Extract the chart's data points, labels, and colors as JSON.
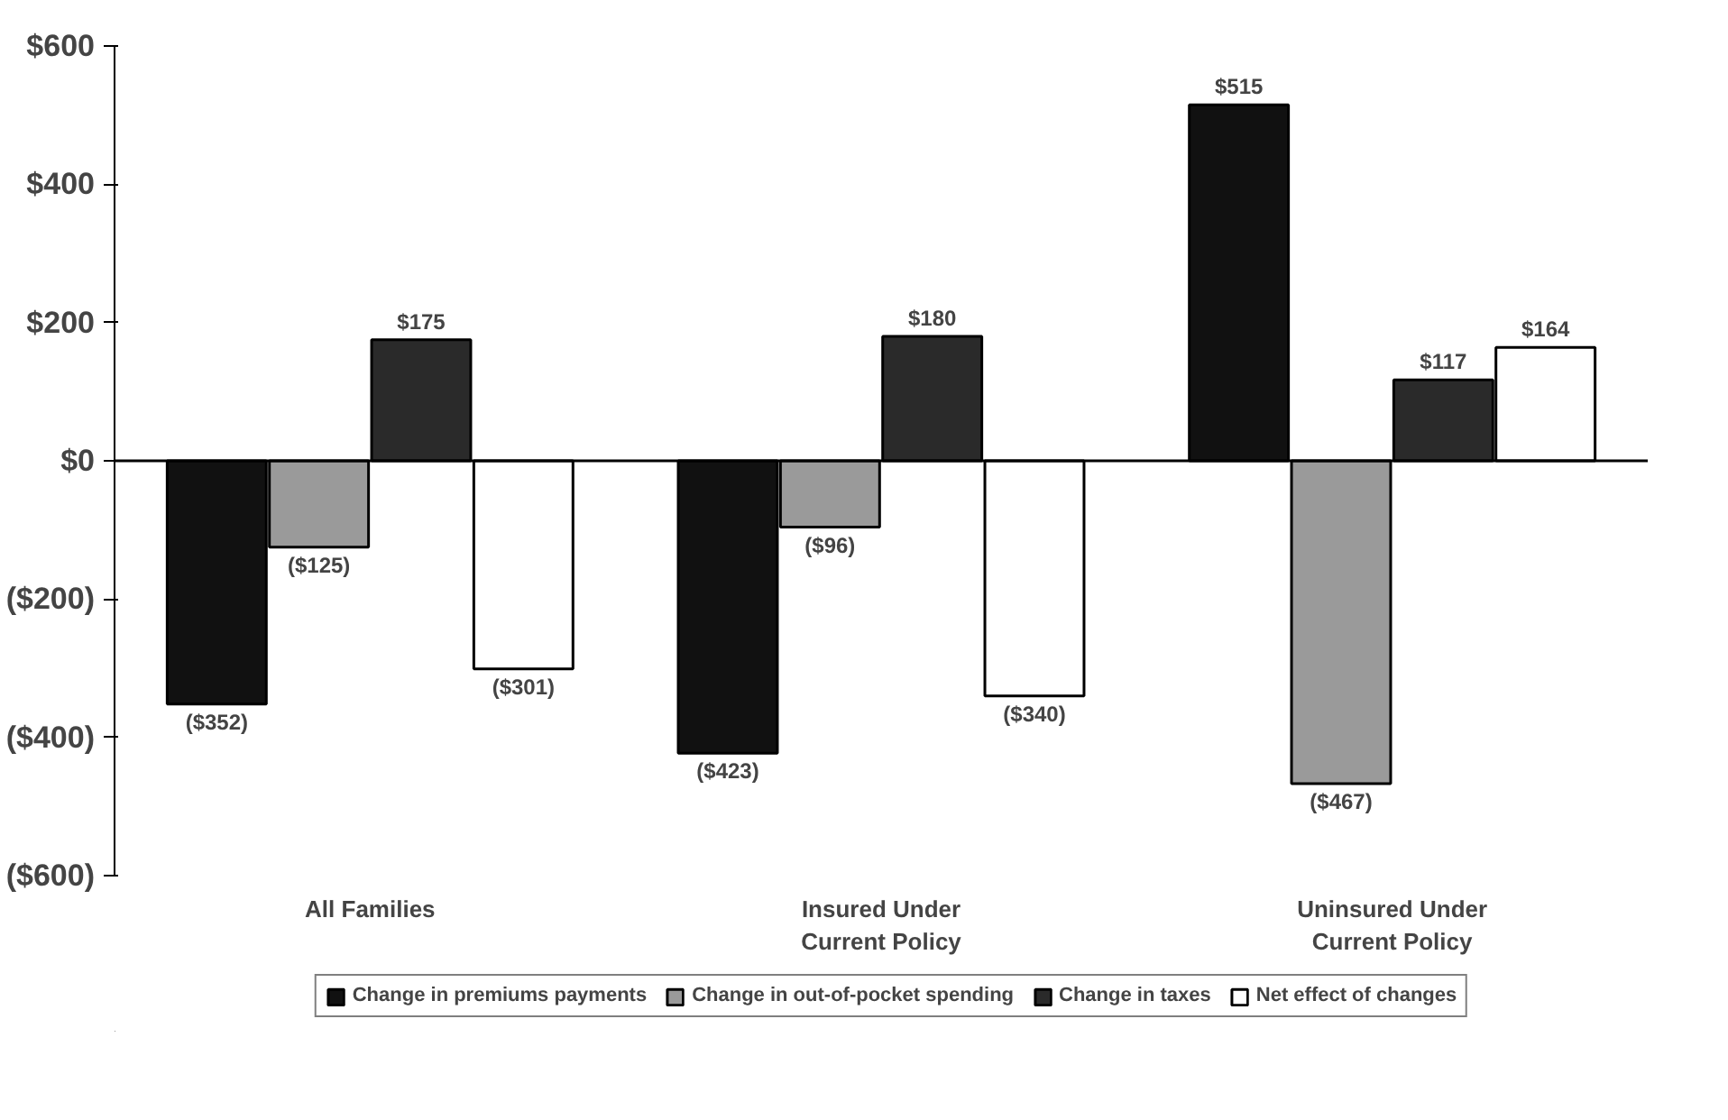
{
  "chart_data": {
    "type": "bar",
    "categories": [
      "All Families",
      "Insured Under\nCurrent Policy",
      "Uninsured Under\nCurrent Policy"
    ],
    "series": [
      {
        "name": "Change in premiums payments",
        "color": "#111111",
        "values": [
          -352,
          -423,
          515
        ],
        "value_labels": [
          "($352)",
          "($423)",
          "$515"
        ]
      },
      {
        "name": "Change in out-of-pocket spending",
        "color": "#9a9a9a",
        "values": [
          -125,
          -96,
          -467
        ],
        "value_labels": [
          "($125)",
          "($96)",
          "($467)"
        ]
      },
      {
        "name": "Change in taxes",
        "color": "#2a2a2a",
        "values": [
          175,
          180,
          117
        ],
        "value_labels": [
          "$175",
          "$180",
          "$117"
        ]
      },
      {
        "name": "Net effect of changes",
        "color": "#ffffff",
        "values": [
          -301,
          -340,
          164
        ],
        "value_labels": [
          "($301)",
          "($340)",
          "$164"
        ]
      }
    ],
    "ylim": [
      -600,
      600
    ],
    "yticks": [
      {
        "value": 600,
        "label": "$600"
      },
      {
        "value": 400,
        "label": "$400"
      },
      {
        "value": 200,
        "label": "$200"
      },
      {
        "value": 0,
        "label": "$0"
      },
      {
        "value": -200,
        "label": "($200)"
      },
      {
        "value": -400,
        "label": "($400)"
      },
      {
        "value": -600,
        "label": "($600)"
      }
    ],
    "ref_lines": [
      {
        "axis": "y",
        "value": 0,
        "label": null
      }
    ],
    "grid": false,
    "legend": "bottom"
  }
}
